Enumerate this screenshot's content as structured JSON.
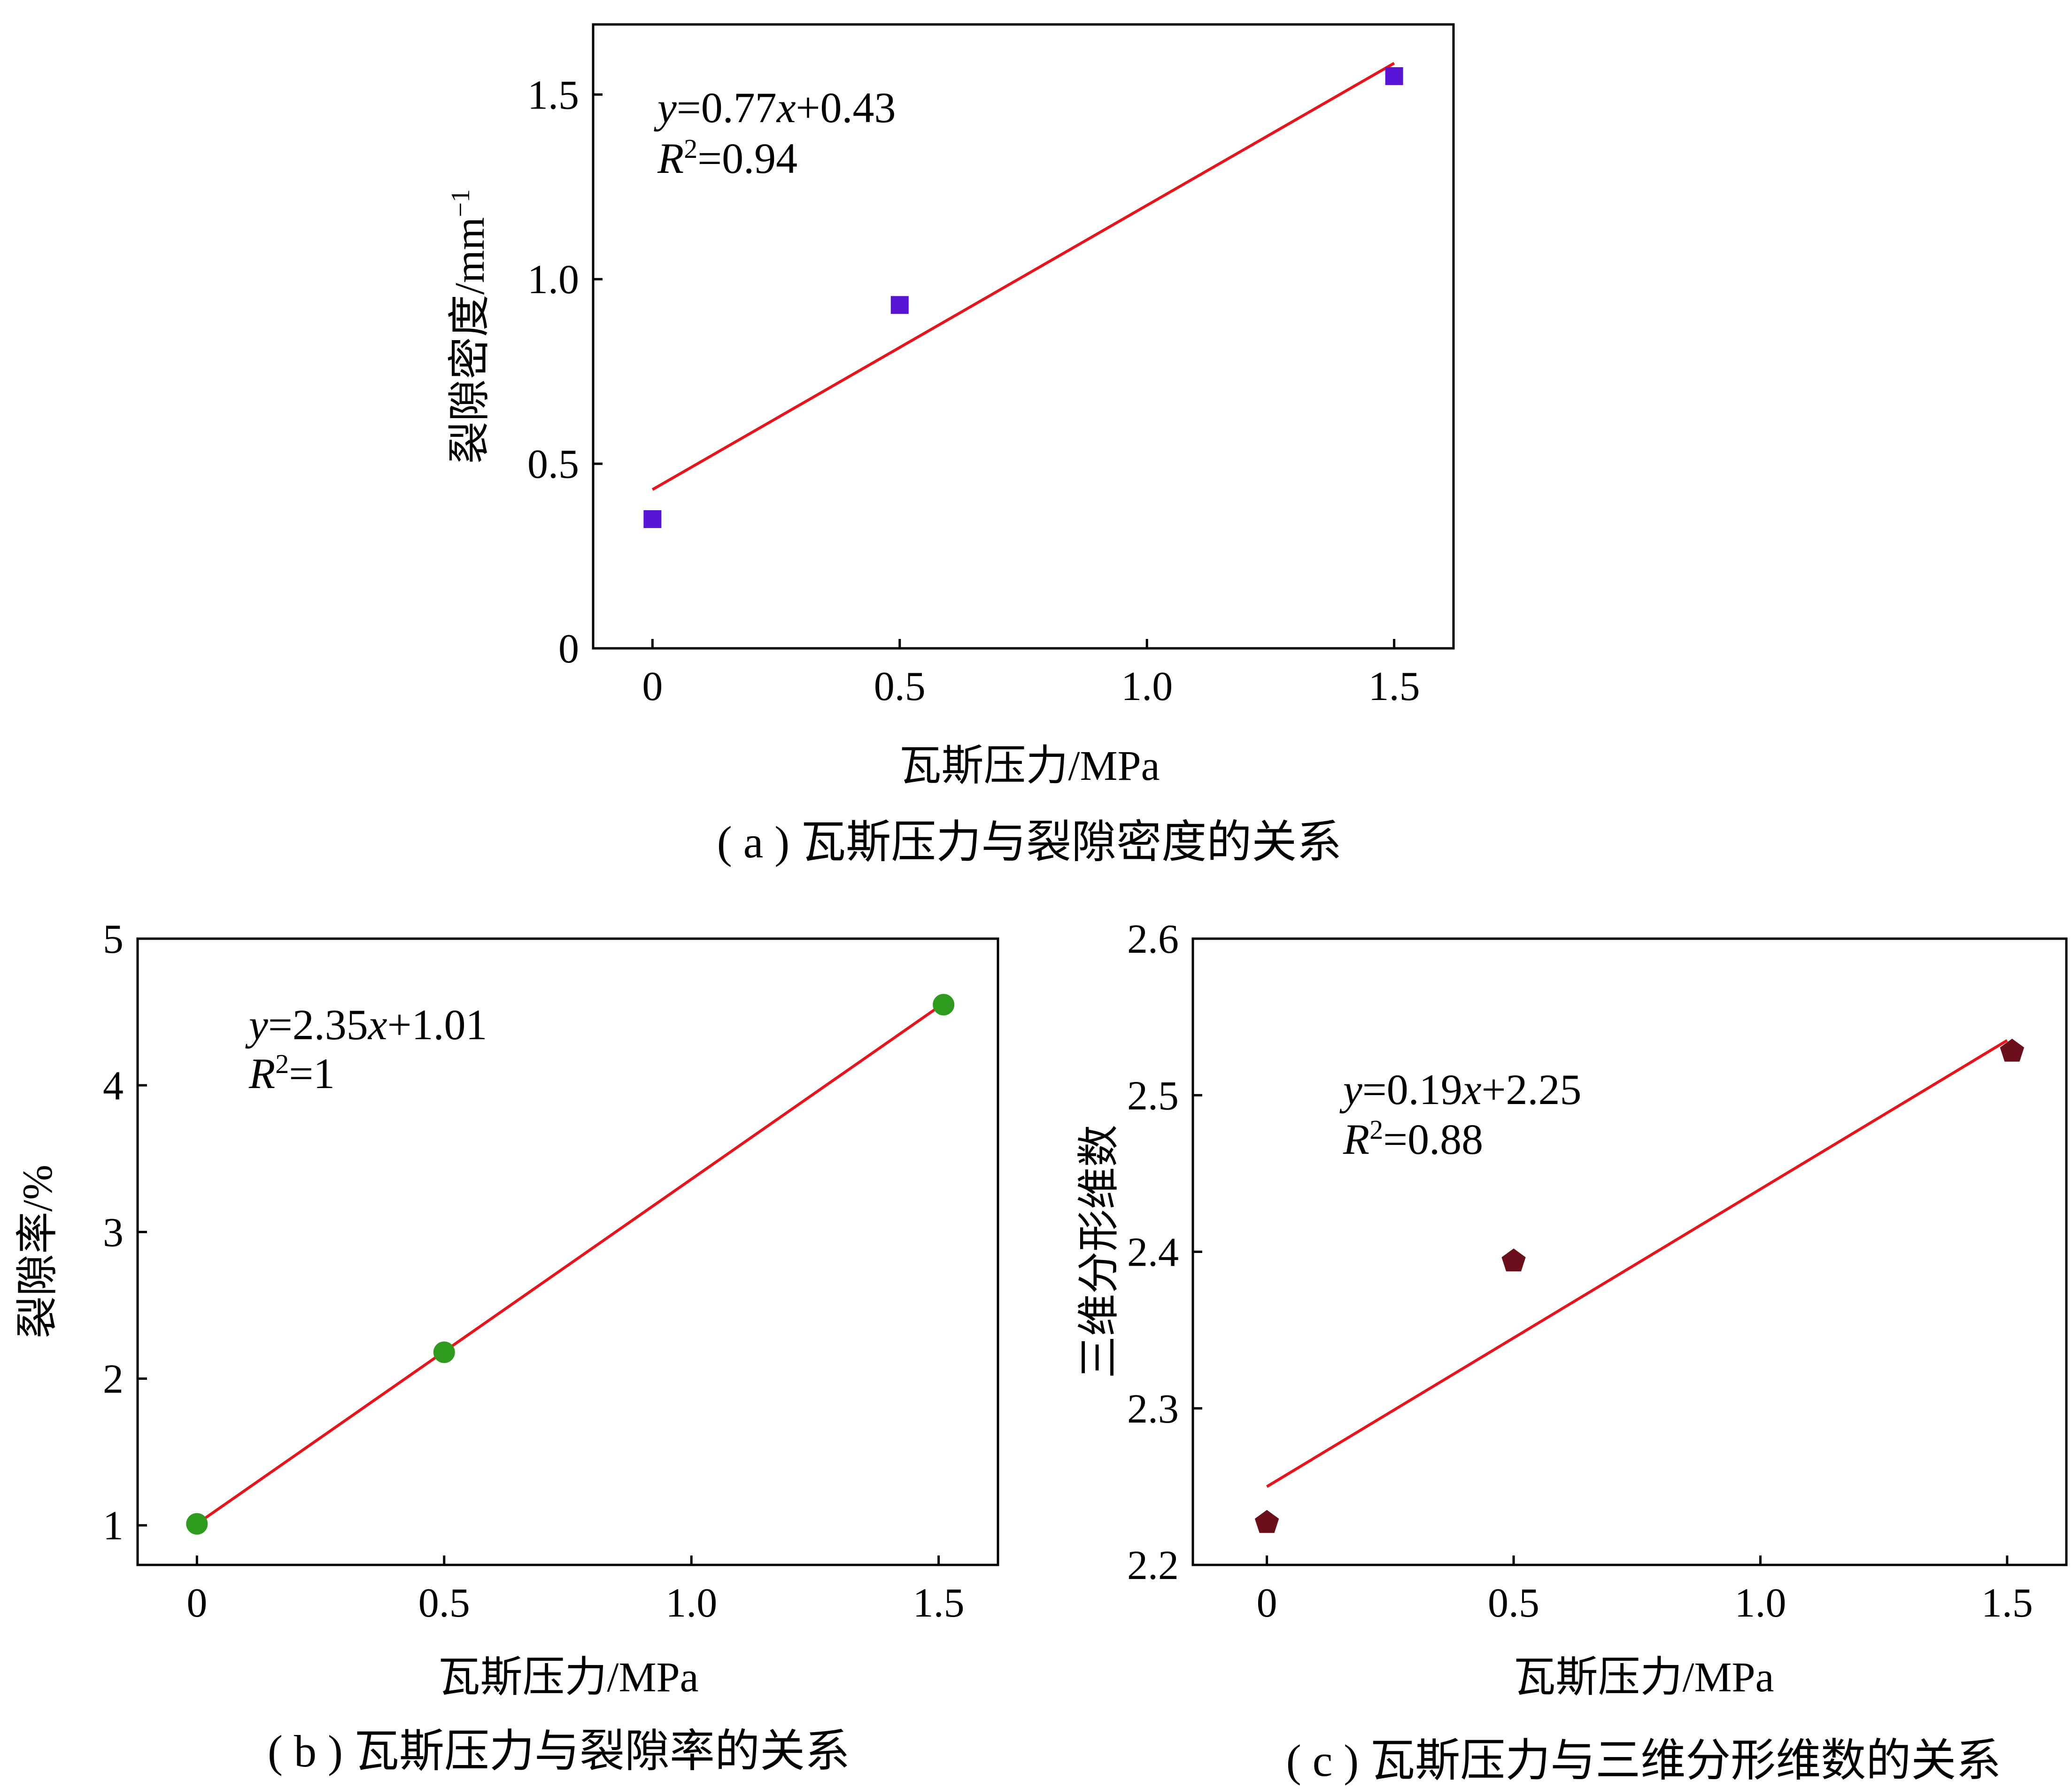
{
  "charts": [
    {
      "id": "a",
      "caption": "( a ) 瓦斯压力与裂隙密度的关系",
      "xlabel": "瓦斯压力/MPa",
      "ylabel": "裂隙密度/mm",
      "ylabel_sup": "−1",
      "equation": {
        "y": "y",
        "mid": "=0.77",
        "x": "x",
        "rest": "+0.43"
      },
      "r2": {
        "R": "R",
        "sup": "2",
        "rest": "=0.94"
      }
    },
    {
      "id": "b",
      "caption": "( b ) 瓦斯压力与裂隙率的关系",
      "xlabel": "瓦斯压力/MPa",
      "ylabel": "裂隙率/%",
      "ylabel_sup": "",
      "equation": {
        "y": "y",
        "mid": "=2.35",
        "x": "x",
        "rest": "+1.01"
      },
      "r2": {
        "R": "R",
        "sup": "2",
        "rest": "=1"
      }
    },
    {
      "id": "c",
      "caption": "( c ) 瓦斯压力与三维分形维数的关系",
      "xlabel": "瓦斯压力/MPa",
      "ylabel": "三维分形维数",
      "ylabel_sup": "",
      "equation": {
        "y": "y",
        "mid": "=0.19",
        "x": "x",
        "rest": "+2.25"
      },
      "r2": {
        "R": "R",
        "sup": "2",
        "rest": "=0.88"
      }
    }
  ],
  "chart_data": [
    {
      "type": "scatter",
      "title": "( a ) 瓦斯压力与裂隙密度的关系",
      "xlabel": "瓦斯压力/MPa",
      "ylabel": "裂隙密度/mm−1",
      "xlim": [
        -0.12,
        1.62
      ],
      "ylim": [
        0,
        1.69
      ],
      "xticks": [
        0,
        0.5,
        1.0,
        1.5
      ],
      "xtick_labels": [
        "0",
        "0.5",
        "1.0",
        "1.5"
      ],
      "yticks": [
        0,
        0.5,
        1.0,
        1.5
      ],
      "ytick_labels": [
        "0",
        "0.5",
        "1.0",
        "1.5"
      ],
      "points": {
        "x": [
          0,
          0.5,
          1.5
        ],
        "y": [
          0.35,
          0.93,
          1.55
        ]
      },
      "marker": "square",
      "marker_color": "#5a14d6",
      "fit": {
        "slope": 0.77,
        "intercept": 0.43,
        "x_range": [
          0,
          1.5
        ],
        "color": "#e8141c"
      },
      "grid": false
    },
    {
      "type": "scatter",
      "title": "( b ) 瓦斯压力与裂隙率的关系",
      "xlabel": "瓦斯压力/MPa",
      "ylabel": "裂隙率/%",
      "xlim": [
        -0.12,
        1.62
      ],
      "ylim": [
        0.73,
        5
      ],
      "xticks": [
        0,
        0.5,
        1.0,
        1.5
      ],
      "xtick_labels": [
        "0",
        "0.5",
        "1.0",
        "1.5"
      ],
      "yticks": [
        1,
        2,
        3,
        4,
        5
      ],
      "ytick_labels": [
        "1",
        "2",
        "3",
        "4",
        "5"
      ],
      "points": {
        "x": [
          0,
          0.5,
          1.51
        ],
        "y": [
          1.01,
          2.18,
          4.55
        ]
      },
      "marker": "circle",
      "marker_color": "#2e9b1e",
      "fit": {
        "slope": 2.35,
        "intercept": 1.01,
        "x_range": [
          0,
          1.51
        ],
        "color": "#e8141c"
      },
      "grid": false
    },
    {
      "type": "scatter",
      "title": "( c ) 瓦斯压力与三维分形维数的关系",
      "xlabel": "瓦斯压力/MPa",
      "ylabel": "三维分形维数",
      "xlim": [
        -0.15,
        1.62
      ],
      "ylim": [
        2.2,
        2.6
      ],
      "xticks": [
        0,
        0.5,
        1.0,
        1.5
      ],
      "xtick_labels": [
        "0",
        "0.5",
        "1.0",
        "1.5"
      ],
      "yticks": [
        2.2,
        2.3,
        2.4,
        2.5,
        2.6
      ],
      "ytick_labels": [
        "2.2",
        "2.3",
        "2.4",
        "2.5",
        "2.6"
      ],
      "points": {
        "x": [
          0,
          0.5,
          1.51
        ],
        "y": [
          2.227,
          2.394,
          2.528
        ]
      },
      "marker": "pentagon",
      "marker_color": "#6b0f1a",
      "fit": {
        "slope": 0.19,
        "intercept": 2.25,
        "x_range": [
          0,
          1.5
        ],
        "color": "#e8141c"
      },
      "grid": false
    }
  ]
}
